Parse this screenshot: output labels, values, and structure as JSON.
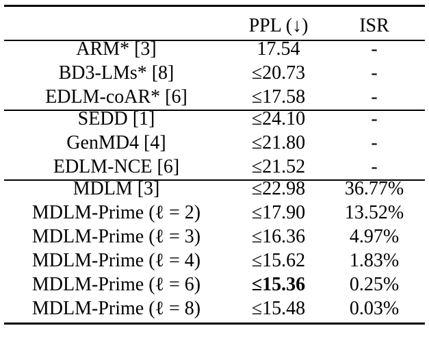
{
  "table": {
    "header": [
      "",
      "PPL (↓)",
      "ISR"
    ],
    "groups": [
      {
        "rows": [
          [
            "ARM* [3]",
            "17.54",
            "-"
          ],
          [
            "BD3-LMs* [8]",
            "≤20.73",
            "-"
          ],
          [
            "EDLM-coAR* [6]",
            "≤17.58",
            "-"
          ]
        ]
      },
      {
        "rows": [
          [
            "SEDD [1]",
            "≤24.10",
            "-"
          ],
          [
            "GenMD4 [4]",
            "≤21.80",
            "-"
          ],
          [
            "EDLM-NCE [6]",
            "≤21.52",
            "-"
          ]
        ]
      },
      {
        "rows": [
          [
            "MDLM [3]",
            "≤22.98",
            "36.77%"
          ],
          [
            "MDLM-Prime (ℓ = 2)",
            "≤17.90",
            "13.52%"
          ],
          [
            "MDLM-Prime (ℓ = 3)",
            "≤16.36",
            "4.97%"
          ],
          [
            "MDLM-Prime (ℓ = 4)",
            "≤15.62",
            "1.83%"
          ],
          [
            "MDLM-Prime (ℓ = 6)",
            "≤15.36",
            "0.25%"
          ],
          [
            "MDLM-Prime (ℓ = 8)",
            "≤15.48",
            "0.03%"
          ]
        ]
      }
    ],
    "bold_cells": [
      "table.groups.2.rows.4.1"
    ]
  }
}
